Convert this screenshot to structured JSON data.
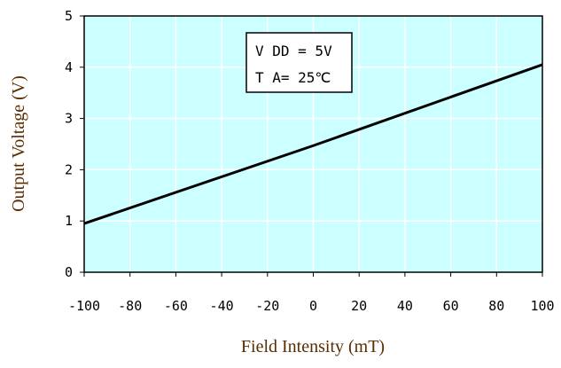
{
  "chart_data": {
    "type": "line",
    "title": "",
    "xlabel": "Field Intensity (mT)",
    "ylabel": "Output Voltage (V)",
    "xlim": [
      -100,
      100
    ],
    "ylim": [
      0,
      5
    ],
    "x_ticks": [
      -100,
      -80,
      -60,
      -40,
      -20,
      0,
      20,
      40,
      60,
      80,
      100
    ],
    "x_tick_labels": [
      "-100",
      "-80",
      "-60",
      "-40",
      "-20",
      "0",
      "20",
      "40",
      "60",
      "80",
      "100"
    ],
    "y_ticks": [
      0,
      1,
      2,
      3,
      4,
      5
    ],
    "y_tick_labels": [
      "0",
      "1",
      "2",
      "3",
      "4",
      "5"
    ],
    "grid": true,
    "legend": "none",
    "plot_background": "#ccffff",
    "grid_color": "#ffffff",
    "line_color": "#000000",
    "series": [
      {
        "x": [
          -100,
          0,
          100
        ],
        "y": [
          0.95,
          2.47,
          4.05
        ]
      }
    ],
    "annotation": {
      "line1": "V DD = 5V",
      "line2": "T A= 25℃",
      "position": "upper-center"
    }
  }
}
